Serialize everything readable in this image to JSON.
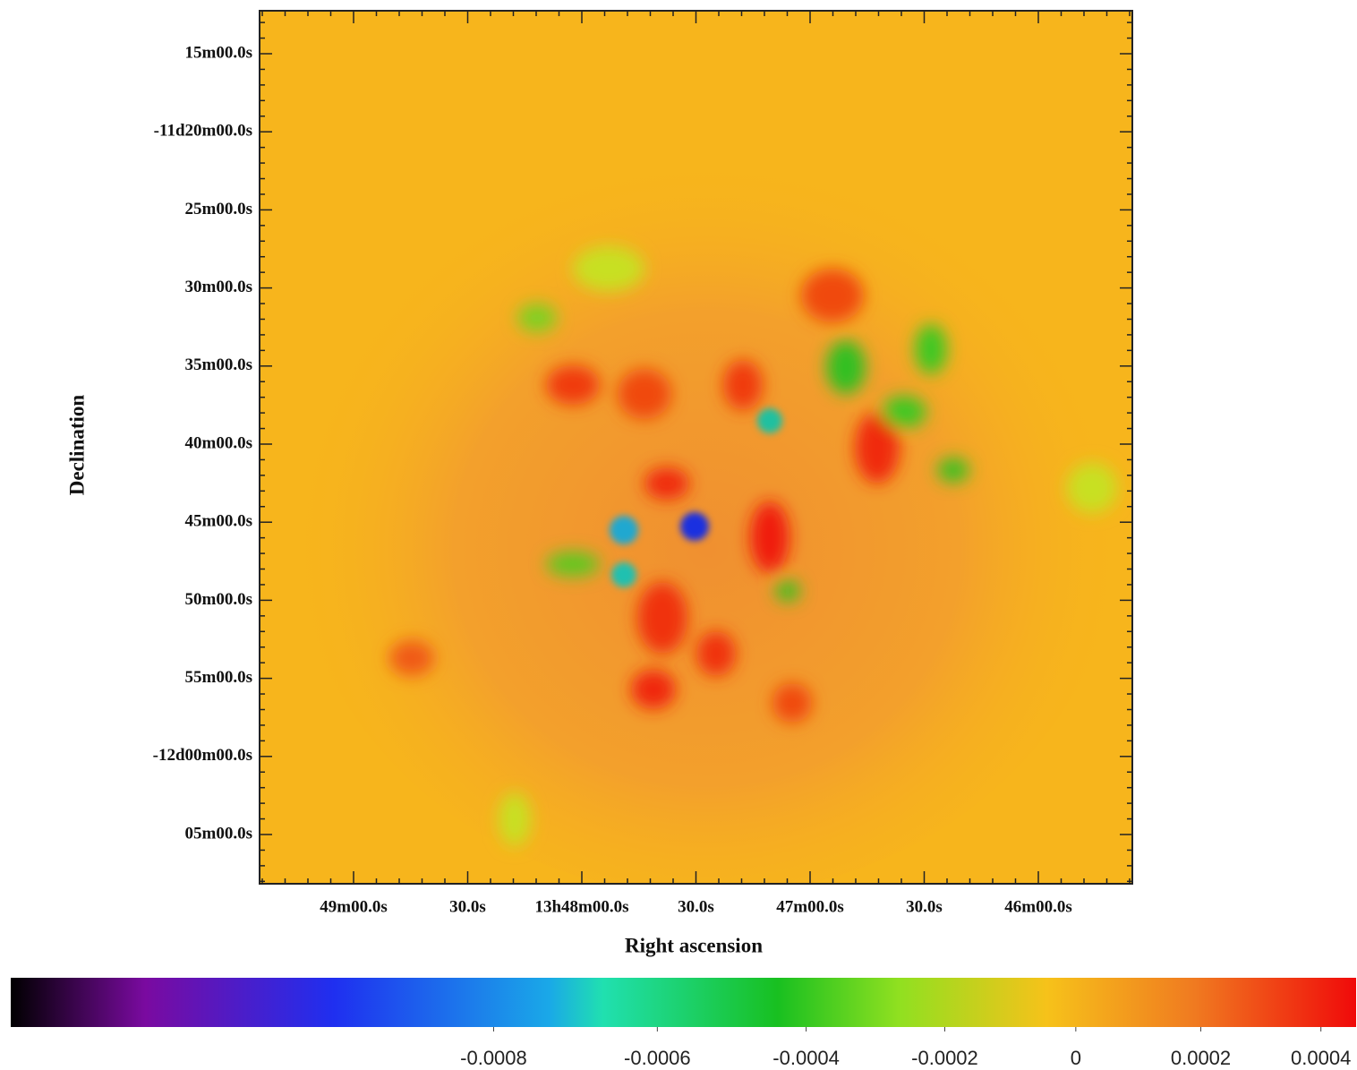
{
  "chart_data": {
    "type": "image",
    "xlabel": "Right ascension",
    "ylabel": "Declination",
    "xtick_labels": [
      "49m00.0s",
      "30.0s",
      "13h48m00.0s",
      "30.0s",
      "47m00.0s",
      "30.0s",
      "46m00.0s"
    ],
    "ytick_labels": [
      "15m00.0s",
      "-11d20m00.0s",
      "25m00.0s",
      "30m00.0s",
      "35m00.0s",
      "40m00.0s",
      "45m00.0s",
      "50m00.0s",
      "55m00.0s",
      "-12d00m00.0s",
      "05m00.0s"
    ],
    "colorbar": {
      "lim": [
        -0.0012,
        0.00046
      ],
      "ticks": [
        -0.0008,
        -0.0006,
        -0.0004,
        -0.0002,
        0,
        0.0002,
        0.0004
      ]
    }
  }
}
